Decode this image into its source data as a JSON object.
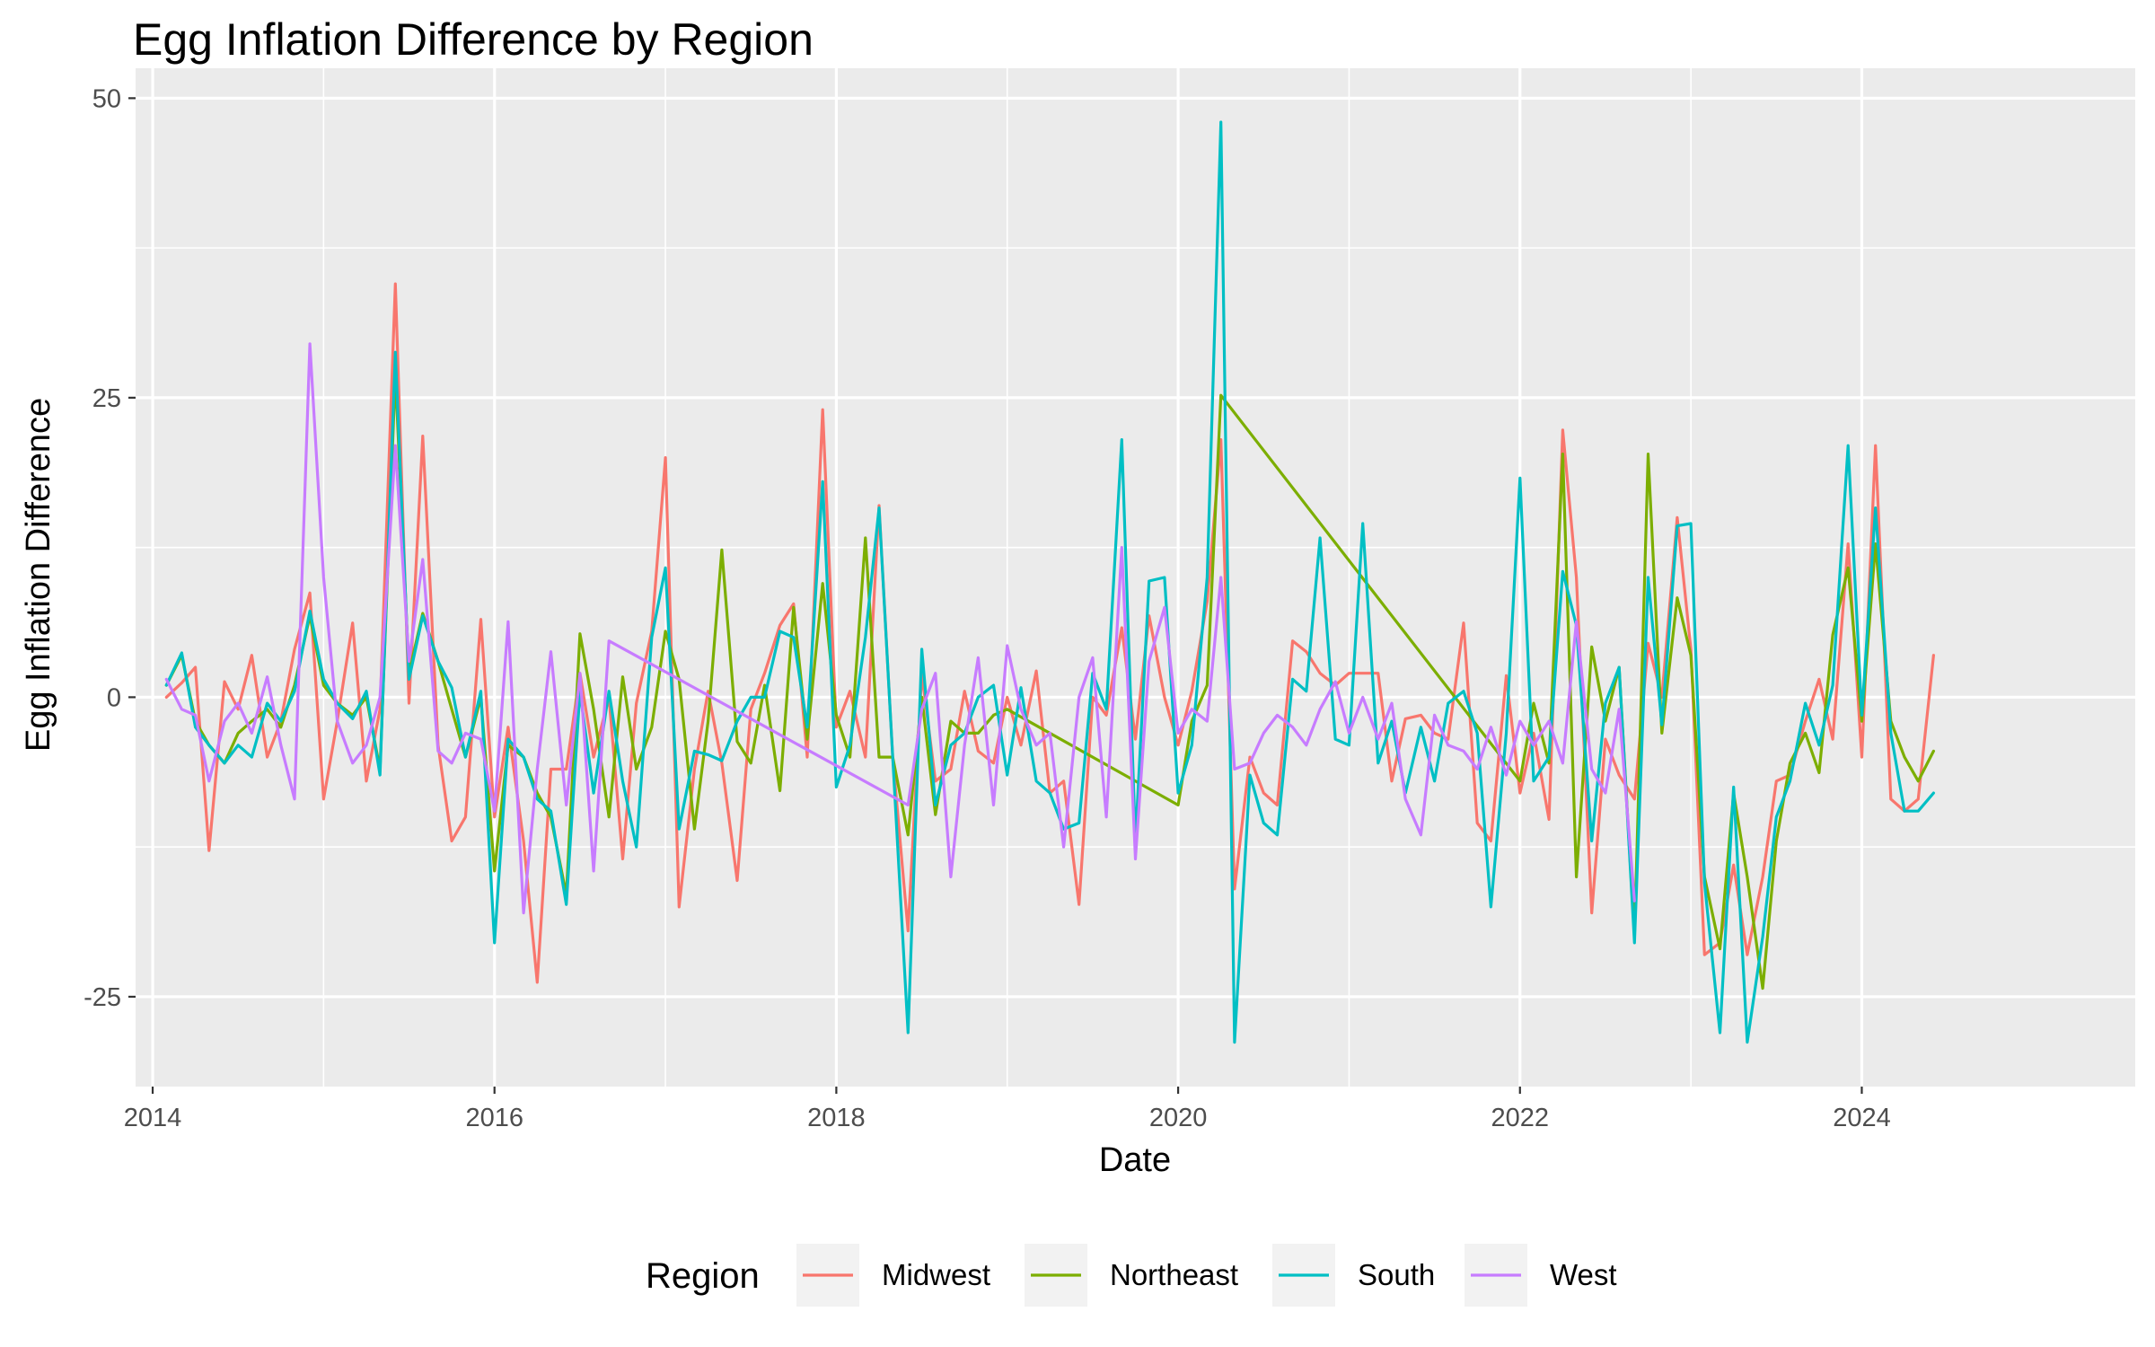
{
  "chart_data": {
    "type": "line",
    "title": "Egg Inflation Difference by Region",
    "xlabel": "Date",
    "ylabel": "Egg Inflation Difference",
    "xlim": [
      2013.9,
      2025.6
    ],
    "ylim": [
      -32.5,
      52.5
    ],
    "x_ticks": [
      2014,
      2016,
      2018,
      2020,
      2022,
      2024
    ],
    "x_tick_labels": [
      "2014",
      "2016",
      "2018",
      "2020",
      "2022",
      "2024"
    ],
    "y_ticks": [
      -25,
      0,
      25,
      50
    ],
    "y_tick_labels": [
      "-25",
      "0",
      "25",
      "50"
    ],
    "grid": true,
    "panel_background": "#ebebeb",
    "legend": {
      "title": "Region",
      "position": "bottom"
    },
    "series": [
      {
        "name": "Midwest",
        "color": "#F8766D",
        "x": [
          2014.08,
          2014.17,
          2014.25,
          2014.33,
          2014.42,
          2014.5,
          2014.58,
          2014.67,
          2014.75,
          2014.83,
          2014.92,
          2015.0,
          2015.08,
          2015.17,
          2015.25,
          2015.33,
          2015.42,
          2015.5,
          2015.58,
          2015.67,
          2015.75,
          2015.83,
          2015.92,
          2016.0,
          2016.08,
          2016.17,
          2016.25,
          2016.33,
          2016.42,
          2016.5,
          2016.58,
          2016.67,
          2016.75,
          2016.83,
          2016.92,
          2017.0,
          2017.08,
          2017.17,
          2017.25,
          2017.33,
          2017.42,
          2017.5,
          2017.58,
          2017.67,
          2017.75,
          2017.83,
          2017.92,
          2018.0,
          2018.08,
          2018.17,
          2018.25,
          2018.33,
          2018.42,
          2018.5,
          2018.58,
          2018.67,
          2018.75,
          2018.83,
          2018.92,
          2019.0,
          2019.08,
          2019.17,
          2019.25,
          2019.33,
          2019.42,
          2019.5,
          2019.58,
          2019.67,
          2019.75,
          2019.83,
          2019.92,
          2020.0,
          2020.08,
          2020.17,
          2020.25,
          2020.33,
          2020.42,
          2020.5,
          2020.58,
          2020.67,
          2020.75,
          2020.83,
          2020.92,
          2021.0,
          2021.08,
          2021.17,
          2021.25,
          2021.33,
          2021.42,
          2021.5,
          2021.58,
          2021.67,
          2021.75,
          2021.83,
          2021.92,
          2022.0,
          2022.08,
          2022.17,
          2022.25,
          2022.33,
          2022.42,
          2022.5,
          2022.58,
          2022.67,
          2022.75,
          2022.83,
          2022.92,
          2023.0,
          2023.08,
          2023.17,
          2023.25,
          2023.33,
          2023.42,
          2023.5,
          2023.58,
          2023.67,
          2023.75,
          2023.83,
          2023.92,
          2024.0,
          2024.08,
          2024.17,
          2024.25,
          2024.33,
          2024.42
        ],
        "y": [
          0,
          1.2,
          2.5,
          -12.8,
          1.3,
          -1,
          3.5,
          -5,
          -2,
          4,
          8.7,
          -8.5,
          -2,
          6.2,
          -7,
          -1,
          34.5,
          -0.5,
          21.8,
          -4,
          -12,
          -10,
          6.5,
          -10,
          -2.5,
          -12,
          -23.8,
          -6,
          -6,
          2,
          -5,
          0,
          -13.5,
          -0.5,
          5.5,
          20,
          -17.5,
          -6,
          0.5,
          -5.5,
          -15.3,
          -1,
          2,
          6,
          7.8,
          -5,
          24,
          -2.5,
          0.5,
          -5,
          16,
          -5,
          -19.5,
          2,
          -7,
          -6,
          0.5,
          -4.5,
          -5.5,
          0,
          -4,
          2.2,
          -8,
          -7,
          -17.3,
          0,
          -1.5,
          5.8,
          -3.5,
          6.8,
          0,
          -4,
          0.5,
          8,
          21.5,
          -16,
          -5,
          -8,
          -9,
          4.7,
          3.8,
          2,
          1,
          2,
          2,
          2,
          -7,
          -1.8,
          -1.5,
          -3,
          -3.5,
          6.2,
          -10.5,
          -12,
          1.8,
          -8,
          -3,
          -10.2,
          22.3,
          10,
          -18,
          -3.5,
          -6.5,
          -8.5,
          4.5,
          0,
          15,
          4,
          -21.5,
          -20.5,
          -14,
          -21.5,
          -15,
          -7,
          -6.5,
          -2,
          1.5,
          -3.5,
          12.8,
          -5,
          21,
          -8.5,
          -9.5,
          -8.5,
          3.5
        ]
      },
      {
        "name": "Northeast",
        "color": "#7CAE00",
        "x": [
          2014.08,
          2014.17,
          2014.25,
          2014.33,
          2014.42,
          2014.5,
          2014.58,
          2014.67,
          2014.75,
          2014.83,
          2014.92,
          2015.0,
          2015.08,
          2015.17,
          2015.25,
          2015.33,
          2015.42,
          2015.5,
          2015.58,
          2015.67,
          2015.75,
          2015.83,
          2015.92,
          2016.0,
          2016.08,
          2016.17,
          2016.25,
          2016.33,
          2016.42,
          2016.5,
          2016.58,
          2016.67,
          2016.75,
          2016.83,
          2016.92,
          2017.0,
          2017.08,
          2017.17,
          2017.25,
          2017.33,
          2017.42,
          2017.5,
          2017.58,
          2017.67,
          2017.75,
          2017.83,
          2017.92,
          2018.0,
          2018.08,
          2018.17,
          2018.25,
          2018.33,
          2018.42,
          2018.5,
          2018.58,
          2018.67,
          2018.75,
          2018.83,
          2018.92,
          2019.0,
          2020.0,
          2020.08,
          2020.17,
          2020.25,
          2022.0,
          2022.08,
          2022.17,
          2022.25,
          2022.33,
          2022.42,
          2022.5,
          2022.58,
          2022.67,
          2022.75,
          2022.83,
          2022.92,
          2023.0,
          2023.08,
          2023.17,
          2023.25,
          2023.33,
          2023.42,
          2023.5,
          2023.58,
          2023.67,
          2023.75,
          2023.83,
          2023.92,
          2024.0,
          2024.08,
          2024.17,
          2024.25,
          2024.33,
          2024.42
        ],
        "y": [
          1,
          3.5,
          -2,
          -4,
          -5.5,
          -3,
          -2,
          -1,
          -2.5,
          1,
          6.8,
          1,
          -0.5,
          -1.5,
          0,
          -6,
          27,
          2,
          7,
          3,
          -1,
          -5,
          0,
          -14.5,
          -4,
          -5,
          -8,
          -10,
          -16.5,
          5.3,
          -1,
          -10,
          1.7,
          -6,
          -2.5,
          5.5,
          1.5,
          -11,
          -2,
          12.3,
          -3.7,
          -5.5,
          1,
          -7.8,
          7.5,
          -3.5,
          9.5,
          -1.5,
          -5,
          13.3,
          -5,
          -5,
          -11.5,
          0,
          -9.8,
          -2,
          -3,
          -3,
          -1.5,
          -1,
          -9,
          -2,
          1,
          25.2,
          -7,
          -0.5,
          -5.5,
          20.3,
          -15,
          4.2,
          -2,
          2.5,
          -20,
          20.3,
          -3,
          8.3,
          3.5,
          -15,
          -21,
          -8,
          -15,
          -24.3,
          -12,
          -5.5,
          -3,
          -6.3,
          5.2,
          10.8,
          -2,
          12.8,
          -2,
          -5,
          -7,
          -4.5
        ]
      },
      {
        "name": "South",
        "color": "#00BFC4",
        "x": [
          2014.08,
          2014.17,
          2014.25,
          2014.33,
          2014.42,
          2014.5,
          2014.58,
          2014.67,
          2014.75,
          2014.83,
          2014.92,
          2015.0,
          2015.08,
          2015.17,
          2015.25,
          2015.33,
          2015.42,
          2015.5,
          2015.58,
          2015.67,
          2015.75,
          2015.83,
          2015.92,
          2016.0,
          2016.08,
          2016.17,
          2016.25,
          2016.33,
          2016.42,
          2016.5,
          2016.58,
          2016.67,
          2016.75,
          2016.83,
          2016.92,
          2017.0,
          2017.08,
          2017.17,
          2017.25,
          2017.33,
          2017.42,
          2017.5,
          2017.58,
          2017.67,
          2017.75,
          2017.83,
          2017.92,
          2018.0,
          2018.08,
          2018.17,
          2018.25,
          2018.33,
          2018.42,
          2018.5,
          2018.58,
          2018.67,
          2018.75,
          2018.83,
          2018.92,
          2019.0,
          2019.08,
          2019.17,
          2019.25,
          2019.33,
          2019.42,
          2019.5,
          2019.58,
          2019.67,
          2019.75,
          2019.83,
          2019.92,
          2020.0,
          2020.08,
          2020.17,
          2020.25,
          2020.33,
          2020.42,
          2020.5,
          2020.58,
          2020.67,
          2020.75,
          2020.83,
          2020.92,
          2021.0,
          2021.08,
          2021.17,
          2021.25,
          2021.33,
          2021.42,
          2021.5,
          2021.58,
          2021.67,
          2021.75,
          2021.83,
          2021.92,
          2022.0,
          2022.08,
          2022.17,
          2022.25,
          2022.33,
          2022.42,
          2022.5,
          2022.58,
          2022.67,
          2022.75,
          2022.83,
          2022.92,
          2023.0,
          2023.08,
          2023.17,
          2023.25,
          2023.33,
          2023.42,
          2023.5,
          2023.58,
          2023.67,
          2023.75,
          2023.83,
          2023.92,
          2024.0,
          2024.08,
          2024.17,
          2024.25,
          2024.33,
          2024.42
        ],
        "y": [
          1,
          3.7,
          -2.5,
          -4,
          -5.5,
          -4,
          -5,
          -0.5,
          -2,
          0.5,
          7.2,
          1.5,
          -0.5,
          -1.8,
          0.5,
          -6.5,
          28.8,
          1.5,
          6.8,
          3,
          0.8,
          -5,
          0.5,
          -20.5,
          -3.5,
          -5,
          -8.5,
          -9.5,
          -17.3,
          0.5,
          -8,
          0.5,
          -7,
          -12.5,
          5,
          10.8,
          -11,
          -4.5,
          -4.8,
          -5.3,
          -2,
          0,
          0,
          5.5,
          5,
          -2.5,
          18,
          -7.5,
          -4,
          5,
          15.8,
          -5,
          -28,
          4,
          -9,
          -4,
          -3,
          0,
          1,
          -6.5,
          0.8,
          -7,
          -8,
          -11,
          -10.5,
          2,
          -1,
          21.5,
          -12,
          9.7,
          10,
          -8,
          -4,
          10,
          48,
          -28.8,
          -6.5,
          -10.5,
          -11.5,
          1.5,
          0.5,
          13.3,
          -3.5,
          -4,
          14.5,
          -5.5,
          -2,
          -8,
          -2.5,
          -7,
          -0.5,
          0.5,
          -3,
          -17.5,
          -3,
          18.3,
          -7,
          -5,
          10.5,
          6,
          -12,
          -0.5,
          2.5,
          -20.5,
          10,
          -2.3,
          14.3,
          14.5,
          -15.5,
          -28,
          -7.5,
          -28.8,
          -20,
          -10,
          -7,
          -0.5,
          -4,
          1,
          21,
          -1.5,
          15.8,
          -3,
          -9.5,
          -9.5,
          -8
        ]
      },
      {
        "name": "West",
        "color": "#C77CFF",
        "x": [
          2014.08,
          2014.17,
          2014.25,
          2014.33,
          2014.42,
          2014.5,
          2014.58,
          2014.67,
          2014.75,
          2014.83,
          2014.92,
          2015.0,
          2015.08,
          2015.17,
          2015.25,
          2015.33,
          2015.42,
          2015.5,
          2015.58,
          2015.67,
          2015.75,
          2015.83,
          2015.92,
          2016.0,
          2016.08,
          2016.17,
          2016.25,
          2016.33,
          2016.42,
          2016.5,
          2016.58,
          2016.67,
          2018.42,
          2018.5,
          2018.58,
          2018.67,
          2018.75,
          2018.83,
          2018.92,
          2019.0,
          2019.08,
          2019.17,
          2019.25,
          2019.33,
          2019.42,
          2019.5,
          2019.58,
          2019.67,
          2019.75,
          2019.83,
          2019.92,
          2020.0,
          2020.08,
          2020.17,
          2020.25,
          2020.33,
          2020.42,
          2020.5,
          2020.58,
          2020.67,
          2020.75,
          2020.83,
          2020.92,
          2021.0,
          2021.08,
          2021.17,
          2021.25,
          2021.33,
          2021.42,
          2021.5,
          2021.58,
          2021.67,
          2021.75,
          2021.83,
          2021.92,
          2022.0,
          2022.08,
          2022.17,
          2022.25,
          2022.33,
          2022.42,
          2022.5,
          2022.58,
          2022.67
        ],
        "y": [
          1.5,
          -1,
          -1.5,
          -7,
          -2,
          -0.5,
          -3,
          1.7,
          -4,
          -8.5,
          29.5,
          10,
          -2,
          -5.5,
          -4,
          0,
          21,
          3,
          11.5,
          -4.5,
          -5.5,
          -3,
          -3.5,
          -9.5,
          6.3,
          -18,
          -6,
          3.8,
          -9,
          2,
          -14.5,
          4.7,
          -9,
          -1,
          2,
          -15,
          -4,
          3.3,
          -9,
          4.3,
          -1,
          -4,
          -3,
          -12.5,
          0,
          3.3,
          -10,
          12.5,
          -13.5,
          3,
          7.5,
          -3,
          -1,
          -2,
          10,
          -6,
          -5.5,
          -3,
          -1.5,
          -2.5,
          -4,
          -1,
          1.3,
          -3,
          0,
          -3.5,
          -0.5,
          -8.5,
          -11.5,
          -1.5,
          -4,
          -4.5,
          -6,
          -2.5,
          -6.5,
          -2,
          -4,
          -2,
          -5.5,
          6.3,
          -6,
          -8,
          -1,
          -17
        ]
      }
    ]
  }
}
